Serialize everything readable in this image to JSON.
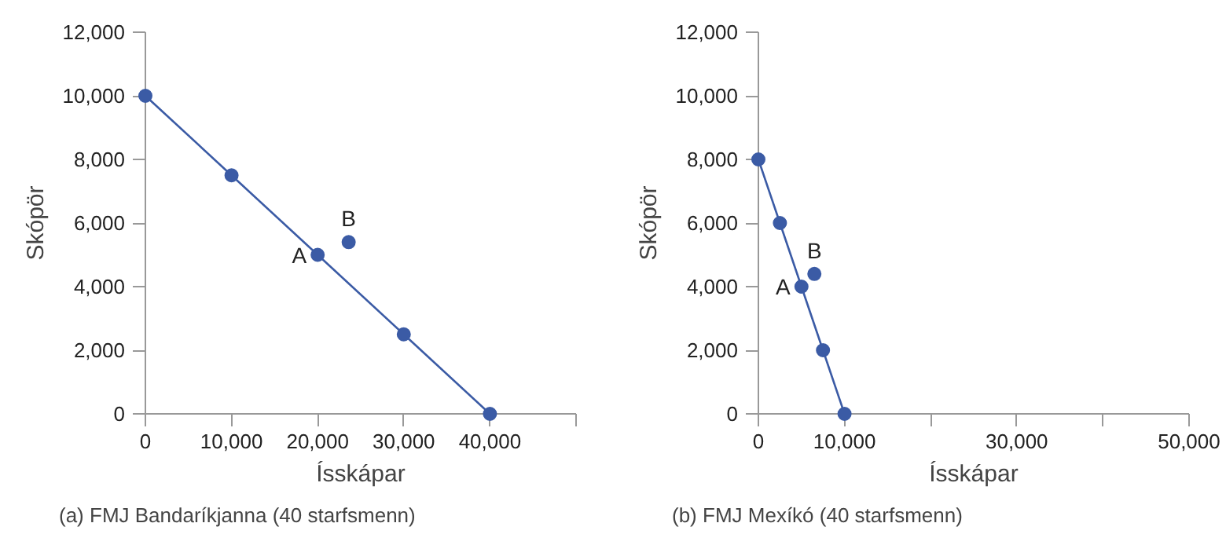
{
  "chart_data": [
    {
      "type": "line",
      "xlabel": "Ísskápar",
      "ylabel": "Skópör",
      "x": [
        0,
        10000,
        20000,
        30000,
        40000
      ],
      "series": [
        {
          "color": "#3b5ba5",
          "marker": "circle",
          "line_style": "solid",
          "values": [
            10000,
            7500,
            5000,
            2500,
            0
          ]
        },
        {
          "type": "scatter",
          "color": "#3b5ba5",
          "marker": "circle",
          "x": [
            23600
          ],
          "values": [
            5400
          ]
        }
      ],
      "xlim": [
        0,
        50000
      ],
      "ylim": [
        0,
        12000
      ],
      "xticks": [
        0,
        {
          "value": 10000,
          "label": "10,000"
        },
        {
          "value": 20000,
          "label": "20,000"
        },
        {
          "value": 30000,
          "label": "30,000"
        },
        {
          "value": 40000,
          "label": "40,000"
        },
        {
          "value": 50000,
          "label": null
        }
      ],
      "yticks": [
        0,
        {
          "value": 2000,
          "label": "2,000"
        },
        {
          "value": 4000,
          "label": "4,000"
        },
        {
          "value": 6000,
          "label": "6,000"
        },
        {
          "value": 8000,
          "label": "8,000"
        },
        {
          "value": 10000,
          "label": "10,000"
        },
        {
          "value": 12000,
          "label": "12,000"
        }
      ],
      "grid": false,
      "annotations": [
        {
          "text": "A",
          "x": 20000,
          "y": 5000
        },
        {
          "text": "B",
          "x": 23600,
          "y": 5400
        },
        "(a) FMJ Bandaríkjanna (40 starfsmenn)"
      ]
    },
    {
      "type": "line",
      "xlabel": "Ísskápar",
      "ylabel": "Skópör",
      "x": [
        0,
        2500,
        5000,
        7500,
        10000
      ],
      "series": [
        {
          "color": "#3b5ba5",
          "marker": "circle",
          "line_style": "solid",
          "values": [
            8000,
            6000,
            4000,
            2000,
            0
          ]
        },
        {
          "type": "scatter",
          "color": "#3b5ba5",
          "marker": "circle",
          "x": [
            6500
          ],
          "values": [
            4400
          ]
        }
      ],
      "xlim": [
        0,
        50000
      ],
      "ylim": [
        0,
        12000
      ],
      "xticks": [
        0,
        {
          "value": 10000,
          "label": "10,000"
        },
        {
          "value": 20000,
          "label": null
        },
        {
          "value": 30000,
          "label": "30,000"
        },
        {
          "value": 40000,
          "label": null
        },
        {
          "value": 50000,
          "label": "50,000"
        }
      ],
      "yticks": [
        0,
        {
          "value": 2000,
          "label": "2,000"
        },
        {
          "value": 4000,
          "label": "4,000"
        },
        {
          "value": 6000,
          "label": "6,000"
        },
        {
          "value": 8000,
          "label": "8,000"
        },
        {
          "value": 10000,
          "label": "10,000"
        },
        {
          "value": 12000,
          "label": "12,000"
        }
      ],
      "grid": false,
      "annotations": [
        {
          "text": "A",
          "x": 5000,
          "y": 4000
        },
        {
          "text": "B",
          "x": 6500,
          "y": 4400
        },
        "(b) FMJ Mexíkó (40 starfsmenn)"
      ]
    }
  ]
}
